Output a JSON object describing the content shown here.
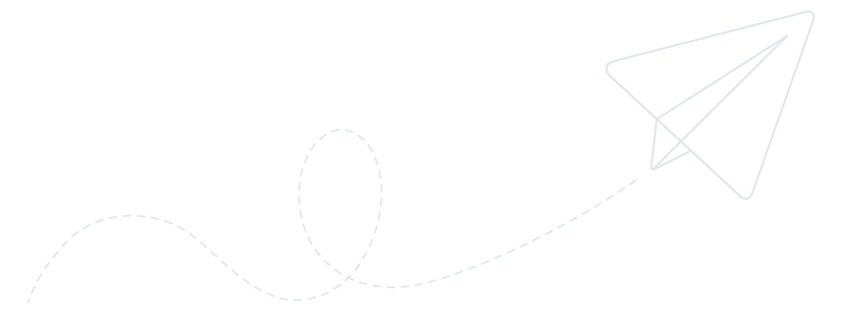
{
  "illustration": {
    "icon": "paper-plane-icon",
    "trail": "dashed-loop-trail",
    "stroke_color": "#e2e6ec",
    "background_color": "#ffffff"
  }
}
